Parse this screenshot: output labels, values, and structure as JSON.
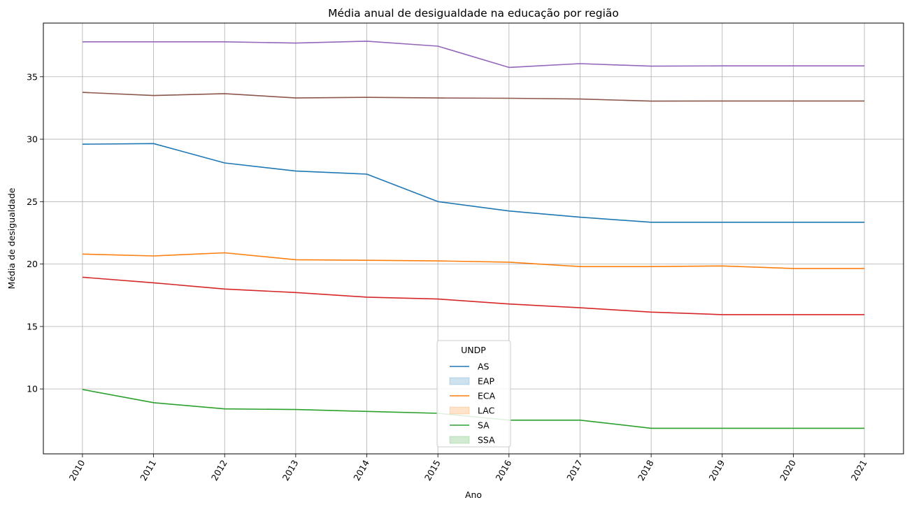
{
  "chart_data": {
    "type": "line",
    "title": "Média anual de desigualdade na educação por região",
    "xlabel": "Ano",
    "ylabel": "Média de desigualdade",
    "x": [
      2010,
      2011,
      2012,
      2013,
      2014,
      2015,
      2016,
      2017,
      2018,
      2019,
      2020,
      2021
    ],
    "xlim": [
      2009.45,
      2021.55
    ],
    "ylim": [
      4.8,
      39.3
    ],
    "yticks": [
      10,
      15,
      20,
      25,
      30,
      35
    ],
    "grid": true,
    "legend": {
      "title": "UNDP",
      "placement": "lower center",
      "entries": [
        {
          "label": "AS",
          "kind": "line",
          "color": "#1f77b4"
        },
        {
          "label": "EAP",
          "kind": "patch",
          "color": "#1f77b4"
        },
        {
          "label": "ECA",
          "kind": "line",
          "color": "#ff7f0e"
        },
        {
          "label": "LAC",
          "kind": "patch",
          "color": "#ff7f0e"
        },
        {
          "label": "SA",
          "kind": "line",
          "color": "#2ca02c"
        },
        {
          "label": "SSA",
          "kind": "patch",
          "color": "#2ca02c"
        }
      ]
    },
    "series": [
      {
        "color": "#9467bd",
        "values": [
          37.8,
          37.8,
          37.8,
          37.7,
          37.85,
          37.45,
          35.75,
          36.05,
          35.85,
          35.87,
          35.87,
          35.87
        ]
      },
      {
        "color": "#8c564b",
        "values": [
          33.75,
          33.5,
          33.65,
          33.3,
          33.35,
          33.3,
          33.28,
          33.22,
          33.05,
          33.06,
          33.06,
          33.06
        ]
      },
      {
        "name": "AS",
        "color": "#1f77b4",
        "values": [
          29.6,
          29.65,
          28.1,
          27.45,
          27.2,
          25.0,
          24.25,
          23.75,
          23.35,
          23.35,
          23.35,
          23.35
        ]
      },
      {
        "name": "ECA",
        "color": "#ff7f0e",
        "values": [
          20.8,
          20.65,
          20.9,
          20.35,
          20.3,
          20.25,
          20.15,
          19.8,
          19.8,
          19.85,
          19.65,
          19.65
        ]
      },
      {
        "color": "#d62728",
        "values": [
          18.95,
          18.5,
          18.0,
          17.72,
          17.35,
          17.2,
          16.8,
          16.5,
          16.15,
          15.95,
          15.95,
          15.95
        ]
      },
      {
        "name": "SA",
        "color": "#2ca02c",
        "values": [
          9.95,
          8.9,
          8.4,
          8.35,
          8.2,
          8.05,
          7.5,
          7.5,
          6.85,
          6.85,
          6.85,
          6.85
        ]
      }
    ]
  }
}
